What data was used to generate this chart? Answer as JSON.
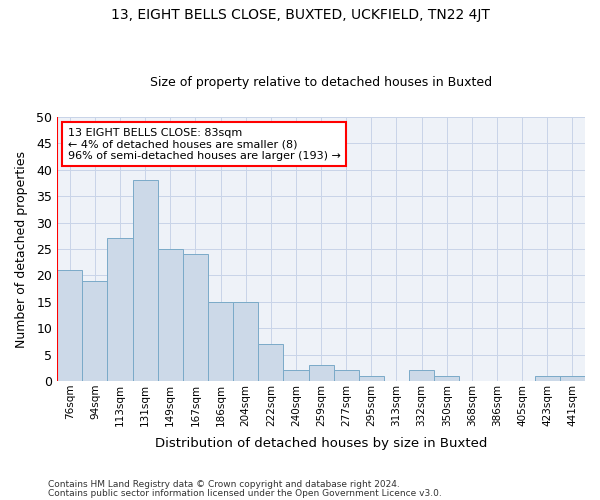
{
  "title1": "13, EIGHT BELLS CLOSE, BUXTED, UCKFIELD, TN22 4JT",
  "title2": "Size of property relative to detached houses in Buxted",
  "xlabel": "Distribution of detached houses by size in Buxted",
  "ylabel": "Number of detached properties",
  "categories": [
    "76sqm",
    "94sqm",
    "113sqm",
    "131sqm",
    "149sqm",
    "167sqm",
    "186sqm",
    "204sqm",
    "222sqm",
    "240sqm",
    "259sqm",
    "277sqm",
    "295sqm",
    "313sqm",
    "332sqm",
    "350sqm",
    "368sqm",
    "386sqm",
    "405sqm",
    "423sqm",
    "441sqm"
  ],
  "values": [
    21,
    19,
    27,
    38,
    25,
    24,
    15,
    15,
    7,
    2,
    3,
    2,
    1,
    0,
    2,
    1,
    0,
    0,
    0,
    1,
    1
  ],
  "bar_color": "#ccd9e8",
  "bar_edge_color": "#7aaac8",
  "annotation_line1": "13 EIGHT BELLS CLOSE: 83sqm",
  "annotation_line2": "← 4% of detached houses are smaller (8)",
  "annotation_line3": "96% of semi-detached houses are larger (193) →",
  "annotation_box_color": "white",
  "annotation_box_edge_color": "red",
  "ylim": [
    0,
    50
  ],
  "yticks": [
    0,
    5,
    10,
    15,
    20,
    25,
    30,
    35,
    40,
    45,
    50
  ],
  "footer1": "Contains HM Land Registry data © Crown copyright and database right 2024.",
  "footer2": "Contains public sector information licensed under the Open Government Licence v3.0.",
  "grid_color": "#c8d4e8",
  "background_color": "#eef2f8",
  "vline_color": "red",
  "vline_x": -0.5
}
